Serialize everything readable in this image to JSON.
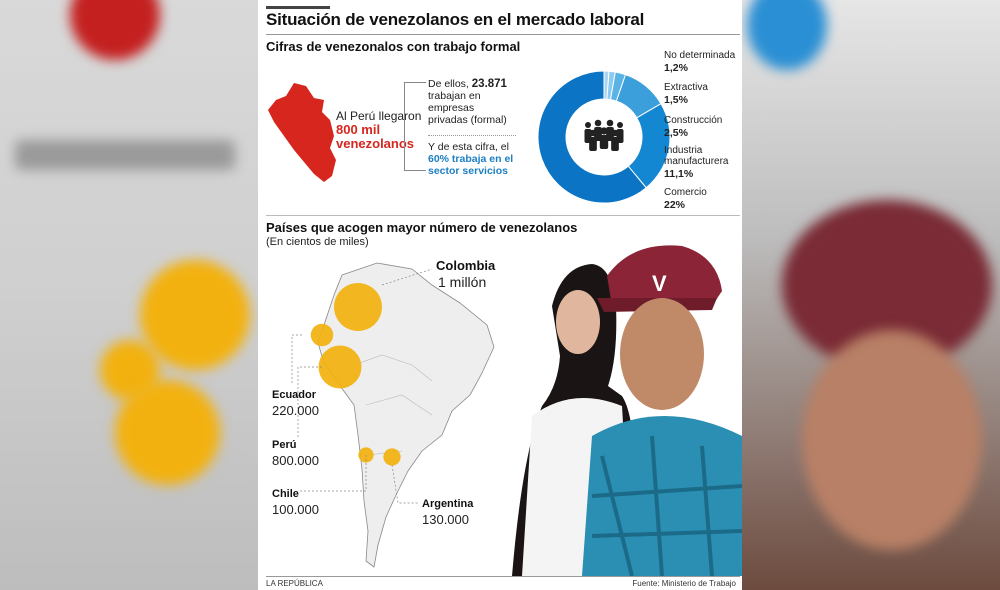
{
  "header": {
    "title": "Situación de venezolanos en el mercado laboral",
    "subtitle": "Cifras de venezonalos con trabajo formal"
  },
  "intro": {
    "line1": "Al Perú llegaron",
    "highlight1": "800 mil",
    "highlight2": "venezolanos"
  },
  "notes": {
    "n1_pre": "De ellos,",
    "n1_number": "23.871",
    "n1_post": "trabajan en empresas privadas (formal)",
    "n2_pre": "Y de esta cifra, el",
    "n2_highlight": "60% trabaja en el sector servicios"
  },
  "section2": {
    "title": "Países que acogen mayor número de venezolanos",
    "subtitle": "(En cientos de miles)"
  },
  "map_labels": {
    "colombia_name": "Colombia",
    "colombia_value": "1 millón",
    "ecuador_name": "Ecuador",
    "ecuador_value": "220.000",
    "peru_name": "Perú",
    "peru_value": "800.000",
    "chile_name": "Chile",
    "chile_value": "100.000",
    "argentina_name": "Argentina",
    "argentina_value": "130.000"
  },
  "footer": {
    "left": "LA REPÚBLICA",
    "right": "Fuente: Ministerio de Trabajo"
  },
  "colors": {
    "peru_red": "#d7261e",
    "donut_blue": "#0b74c4",
    "donut_light": "#5ab3e4",
    "bubble": "#f2b10f"
  },
  "icons": [
    "peru-map-icon",
    "people-group-icon",
    "south-america-map-icon"
  ],
  "chart_data": [
    {
      "type": "pie",
      "title": "",
      "categories": [
        "No determinada",
        "Extractiva",
        "Construcción",
        "Industria manufacturera",
        "Comercio",
        "Servicios"
      ],
      "labels": [
        "1,2%",
        "1,5%",
        "2,5%",
        "11,1%",
        "22%",
        "60%"
      ],
      "values": [
        1.2,
        1.5,
        2.5,
        11.1,
        22,
        60
      ],
      "colors": [
        "#a9d6f2",
        "#8ccaf0",
        "#5ab3e4",
        "#3b9fdc",
        "#1487d2",
        "#0b74c4"
      ]
    },
    {
      "type": "bubble",
      "categories": [
        "Colombia",
        "Ecuador",
        "Perú",
        "Chile",
        "Argentina"
      ],
      "values": [
        1000000,
        220000,
        800000,
        100000,
        130000
      ],
      "value_labels": [
        "1 millón",
        "220.000",
        "800.000",
        "100.000",
        "130.000"
      ]
    }
  ]
}
